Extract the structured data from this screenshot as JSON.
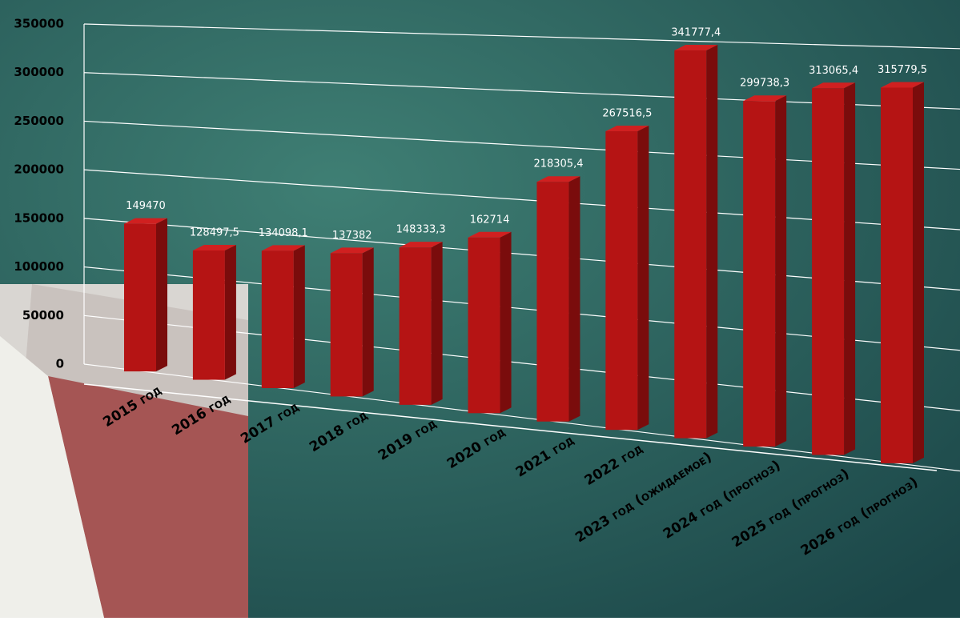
{
  "chart_data": {
    "type": "bar",
    "categories": [
      "2015 год",
      "2016 год",
      "2017 год",
      "2018 год",
      "2019 год",
      "2020 год",
      "2021 год",
      "2022 год",
      "2023 год (ожидаемое)",
      "2024 год (прогноз)",
      "2025 год (прогноз)",
      "2026 год (прогноз)"
    ],
    "values": [
      149470,
      128497.5,
      134098.1,
      137382,
      148333.3,
      162714,
      218305.4,
      267516.5,
      341777.4,
      299738.3,
      313065.4,
      315779.5
    ],
    "value_labels": [
      "149470",
      "128497,5",
      "134098,1",
      "137382",
      "148333,3",
      "162714",
      "218305,4",
      "267516,5",
      "341777,4",
      "299738,3",
      "313065,4",
      "315779,5"
    ],
    "color": "#b51414",
    "ylim": [
      0,
      350000
    ],
    "yticks": [
      0,
      50000,
      100000,
      150000,
      200000,
      250000,
      300000,
      350000
    ],
    "grid": true
  }
}
